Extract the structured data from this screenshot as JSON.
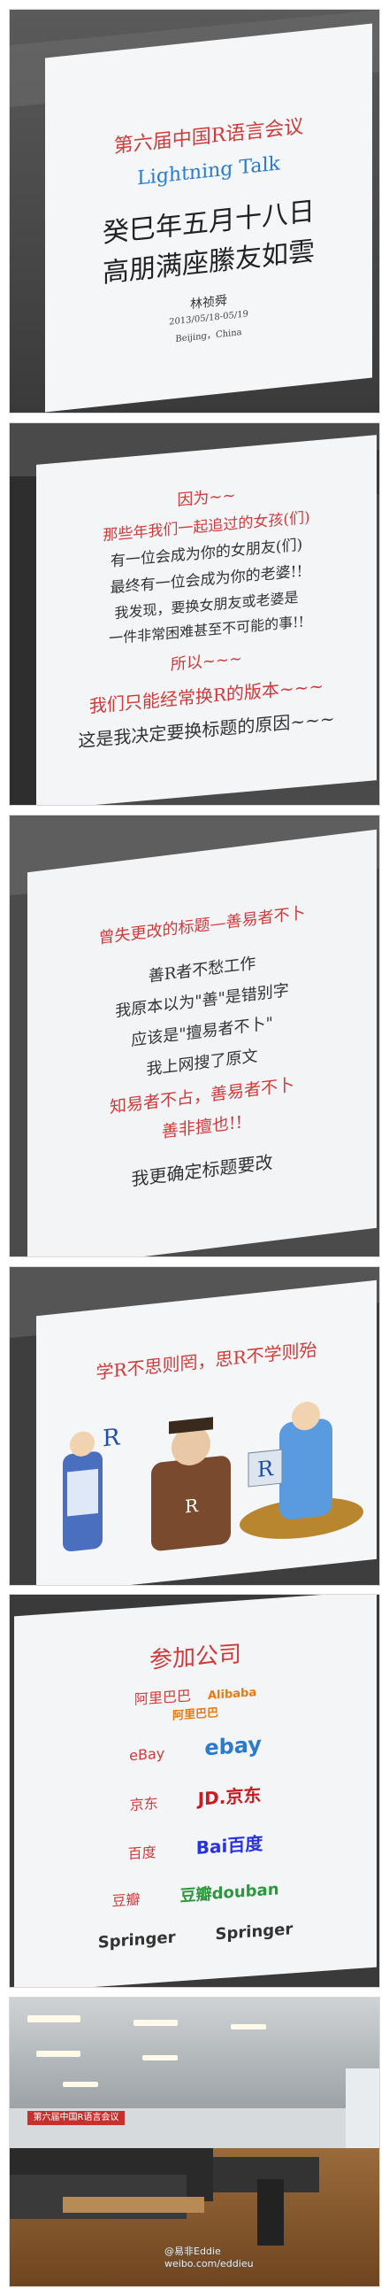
{
  "slides": [
    {
      "lines": [
        "第六届中国R语言会议",
        "Lightning Talk",
        "癸巳年五月十八日",
        "高朋满座縢友如雲",
        "林祯舜",
        "2013/05/18-05/19",
        "Beijing，China"
      ]
    },
    {
      "lines": [
        "因为~~",
        "那些年我们一起追过的女孩(们)",
        "有一位会成为你的女朋友(们)",
        "最终有一位会成为你的老婆!!",
        "我发现，要换女朋友或老婆是",
        "一件非常困难甚至不可能的事!!",
        "所以~~~",
        "我们只能经常换R的版本~~~",
        "这是我决定要换标题的原因~~~"
      ]
    },
    {
      "lines": [
        "曾失更改的标题—善易者不卜",
        "善R者不愁工作",
        "我原本以为\"善\"是错别字",
        "应该是\"擅易者不卜\"",
        "我上网搜了原文",
        "知易者不占，善易者不卜",
        "善非擅也!!",
        "我更确定标题要改"
      ]
    },
    {
      "lines": [
        "学R不思则罔，思R不学则殆",
        "R",
        "R",
        "R"
      ]
    },
    {
      "lines": [
        "参加公司",
        "阿里巴巴",
        "Alibaba",
        "阿里巴巴",
        "eBay",
        "ebay",
        "京东",
        "JD.京东",
        "百度",
        "Bai百度",
        "豆瓣",
        "豆瓣douban",
        "Springer",
        "Springer"
      ]
    },
    {
      "banner": "第六届中国R语言会议"
    }
  ],
  "watermark": {
    "lines": [
      "@易非Eddie",
      "weibo.com/eddieu"
    ]
  },
  "colors": {
    "slide_bg": "#f4f6f8",
    "title_red": "#d23a3a",
    "lightning_blue": "#2a7bd0",
    "room_dark": "#2a2a2a"
  }
}
